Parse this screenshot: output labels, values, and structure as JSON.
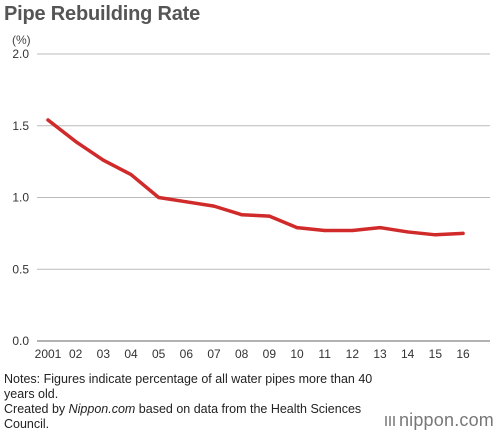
{
  "header": {
    "title": "Pipe Rebuilding Rate"
  },
  "chart_data": {
    "type": "line",
    "title": "Pipe Rebuilding Rate",
    "ylabel": "(%)",
    "xlabel": "",
    "categories": [
      "2001",
      "02",
      "03",
      "04",
      "05",
      "06",
      "07",
      "08",
      "09",
      "10",
      "11",
      "12",
      "13",
      "14",
      "15",
      "16"
    ],
    "series": [
      {
        "values": [
          1.54,
          1.39,
          1.26,
          1.16,
          1.0,
          0.97,
          0.94,
          0.88,
          0.87,
          0.79,
          0.77,
          0.77,
          0.79,
          0.76,
          0.74,
          0.75
        ]
      }
    ],
    "ylim": [
      0,
      2.0
    ],
    "yticks": [
      "0.0",
      "0.5",
      "1.0",
      "1.5",
      "2.0"
    ],
    "grid": true,
    "line_color": "#d12a2a"
  },
  "footer": {
    "notes_line1": "Notes: Figures indicate percentage of all water pipes more than 40 years old.",
    "credit_prefix": "Created by ",
    "credit_source": "Nippon.com",
    "credit_suffix": " based on data from the Health Sciences Council.",
    "brand": "nippon.com"
  }
}
